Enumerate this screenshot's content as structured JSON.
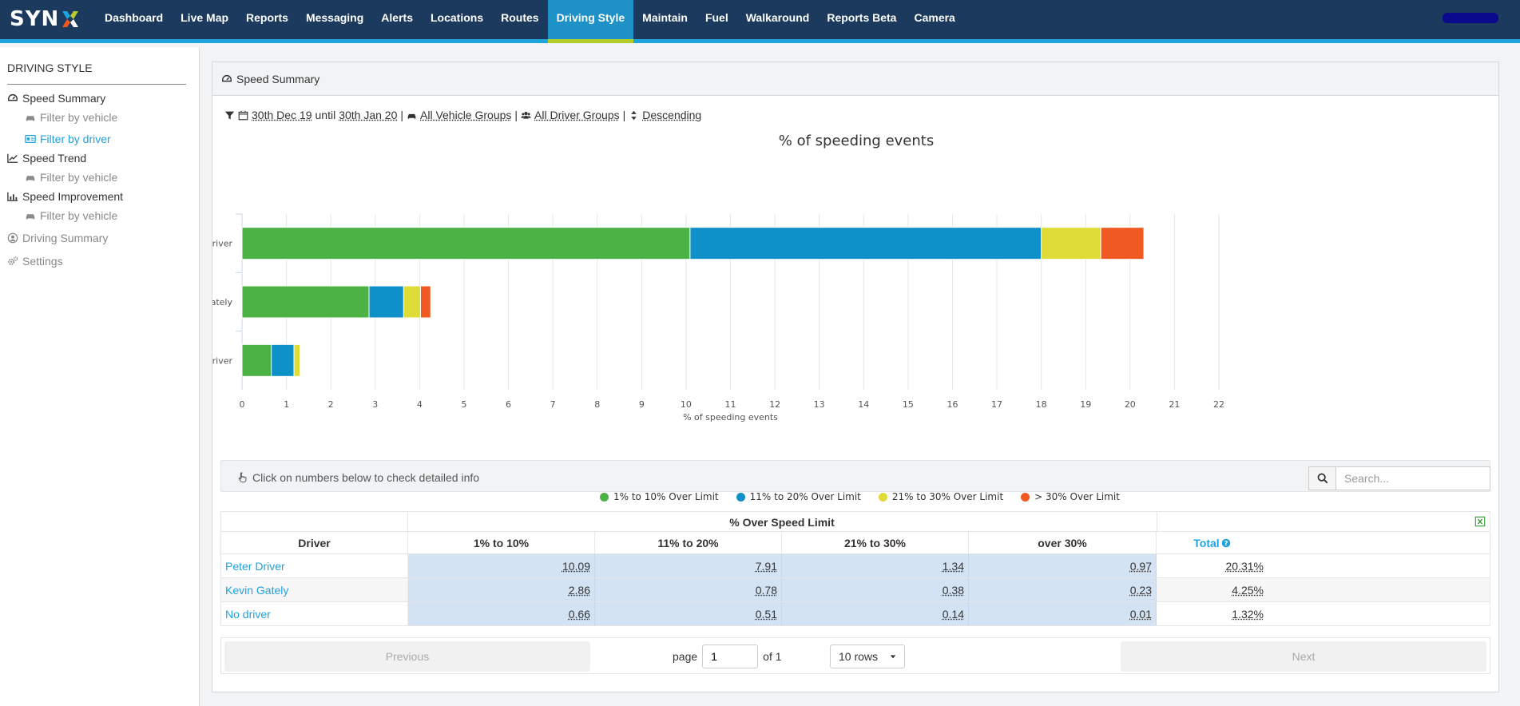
{
  "brand": {
    "logo_text": "SYN"
  },
  "nav": {
    "items": [
      "Dashboard",
      "Live Map",
      "Reports",
      "Messaging",
      "Alerts",
      "Locations",
      "Routes",
      "Driving Style",
      "Maintain",
      "Fuel",
      "Walkaround",
      "Reports Beta",
      "Camera"
    ],
    "active": "Driving Style"
  },
  "sidebar": {
    "title": "DRIVING STYLE",
    "speed_summary": "Speed Summary",
    "filter_vehicle_1": "Filter by vehicle",
    "filter_driver": "Filter by driver",
    "speed_trend": "Speed Trend",
    "filter_vehicle_2": "Filter by vehicle",
    "speed_improvement": "Speed Improvement",
    "filter_vehicle_3": "Filter by vehicle",
    "driving_summary": "Driving Summary",
    "settings": "Settings"
  },
  "panel": {
    "title": "Speed Summary",
    "filters": {
      "date_from": "30th Dec 19",
      "until": "until",
      "date_to": "30th Jan 20",
      "vehicle_groups": "All Vehicle Groups",
      "driver_groups": "All Driver Groups",
      "sort": "Descending",
      "sep": "|"
    }
  },
  "chart_data": {
    "type": "bar",
    "orientation": "horizontal",
    "stacked": true,
    "title": "% of speeding events",
    "xlabel": "% of speeding events",
    "ylabel": "",
    "categories": [
      "Peter Driver",
      "Kevin Gately",
      "No driver"
    ],
    "xlim": [
      0,
      22
    ],
    "xticks": [
      0,
      1,
      2,
      3,
      4,
      5,
      6,
      7,
      8,
      9,
      10,
      11,
      12,
      13,
      14,
      15,
      16,
      17,
      18,
      19,
      20,
      21,
      22
    ],
    "series": [
      {
        "name": "1% to 10% Over Limit",
        "color": "#4cb244",
        "values": [
          10.09,
          2.86,
          0.66
        ]
      },
      {
        "name": "11% to 20% Over Limit",
        "color": "#0e90c8",
        "values": [
          7.91,
          0.78,
          0.51
        ]
      },
      {
        "name": "21% to 30% Over Limit",
        "color": "#dfdb37",
        "values": [
          1.34,
          0.38,
          0.14
        ]
      },
      {
        "name": "> 30% Over Limit",
        "color": "#f05a22",
        "values": [
          0.97,
          0.23,
          0.01
        ]
      }
    ],
    "legend_position": "bottom"
  },
  "info": {
    "hint": "Click on numbers below to check detailed info",
    "search_placeholder": "Search..."
  },
  "table": {
    "group_header": "% Over Speed Limit",
    "columns": [
      "Driver",
      "1% to 10%",
      "11% to 20%",
      "21% to 30%",
      "over 30%",
      "Total"
    ],
    "rows": [
      {
        "driver": "Peter Driver",
        "c1": "10.09",
        "c2": "7.91",
        "c3": "1.34",
        "c4": "0.97",
        "total": "20.31%"
      },
      {
        "driver": "Kevin Gately",
        "c1": "2.86",
        "c2": "0.78",
        "c3": "0.38",
        "c4": "0.23",
        "total": "4.25%"
      },
      {
        "driver": "No driver",
        "c1": "0.66",
        "c2": "0.51",
        "c3": "0.14",
        "c4": "0.01",
        "total": "1.32%"
      }
    ]
  },
  "pager": {
    "previous": "Previous",
    "next": "Next",
    "page_label": "page",
    "page_value": "1",
    "of_label": "of 1",
    "rows_label": "10 rows"
  }
}
